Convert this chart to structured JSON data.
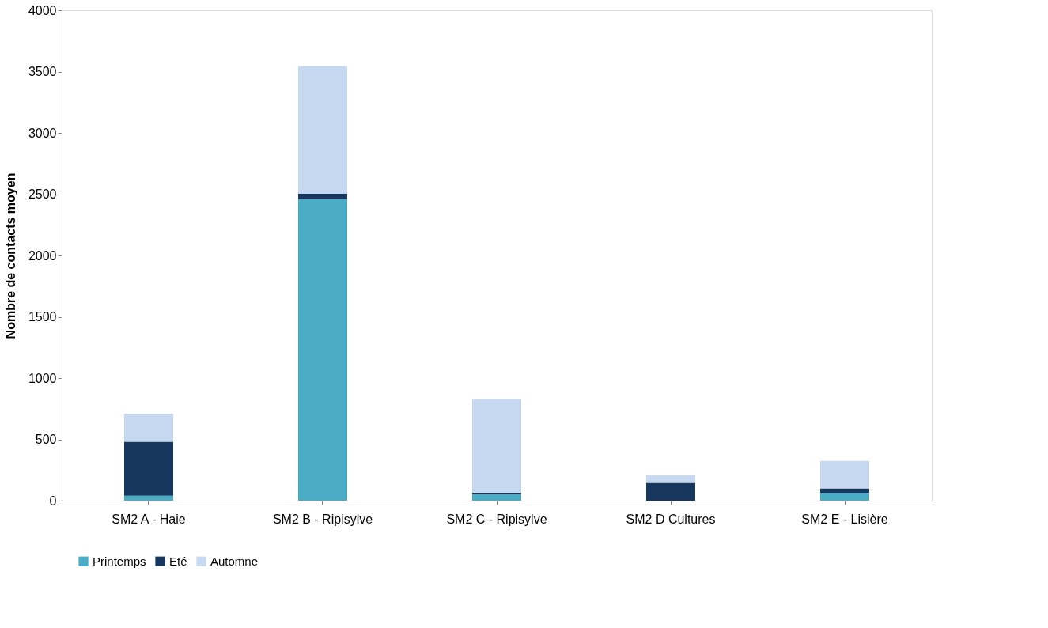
{
  "chart_data": {
    "type": "bar",
    "stacked": true,
    "ylabel": "Nombre de contacts moyen",
    "categories": [
      "SM2 A - Haie",
      "SM2 B - Ripisylve",
      "SM2 C - Ripisylve",
      "SM2 D Cultures",
      "SM2 E - Lisière"
    ],
    "series": [
      {
        "name": "Printemps",
        "color": "#4bacc6",
        "values": [
          40,
          2460,
          55,
          0,
          65
        ]
      },
      {
        "name": "Eté",
        "color": "#17375e",
        "values": [
          440,
          45,
          10,
          145,
          35
        ]
      },
      {
        "name": "Automne",
        "color": "#c6d9f1",
        "values": [
          230,
          1040,
          765,
          65,
          225
        ]
      }
    ],
    "ylim": [
      0,
      4000
    ],
    "yticks": [
      0,
      500,
      1000,
      1500,
      2000,
      2500,
      3000,
      3500,
      4000
    ],
    "grid": false,
    "legend": "bottom"
  }
}
